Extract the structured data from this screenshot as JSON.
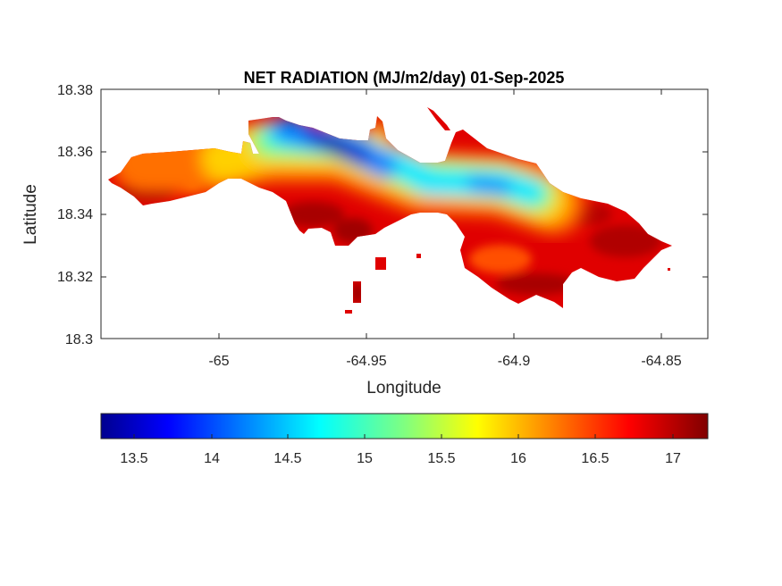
{
  "chart_data": {
    "type": "heatmap",
    "title": "NET RADIATION (MJ/m2/day) 01-Sep-2025",
    "xlabel": "Longitude",
    "ylabel": "Latitude",
    "xlim": [
      -65.04,
      -64.834
    ],
    "ylim": [
      18.3,
      18.38
    ],
    "xticks": [
      -65,
      -64.95,
      -64.9,
      -64.85
    ],
    "xtick_labels": [
      "-65",
      "-64.95",
      "-64.9",
      "-64.85"
    ],
    "yticks": [
      18.3,
      18.32,
      18.34,
      18.36,
      18.38
    ],
    "ytick_labels": [
      "18.3",
      "18.32",
      "18.34",
      "18.36",
      "18.38"
    ],
    "colorbar": {
      "colormap": "jet",
      "location": "south",
      "clim": [
        13.29,
        17.23
      ],
      "ticks": [
        13.5,
        14,
        14.5,
        15,
        15.5,
        16,
        16.5,
        17
      ],
      "tick_labels": [
        "13.5",
        "14",
        "14.5",
        "15",
        "15.5",
        "16",
        "16.5",
        "17"
      ]
    },
    "grid": false,
    "field_summary": {
      "min_region": "north-central ridge near -64.96, 18.36 (about 13.3)",
      "max_region": "south and east coasts (about 17)"
    }
  },
  "colors": {
    "low": "#00008f",
    "mid": "#80ff80",
    "high": "#800000"
  }
}
